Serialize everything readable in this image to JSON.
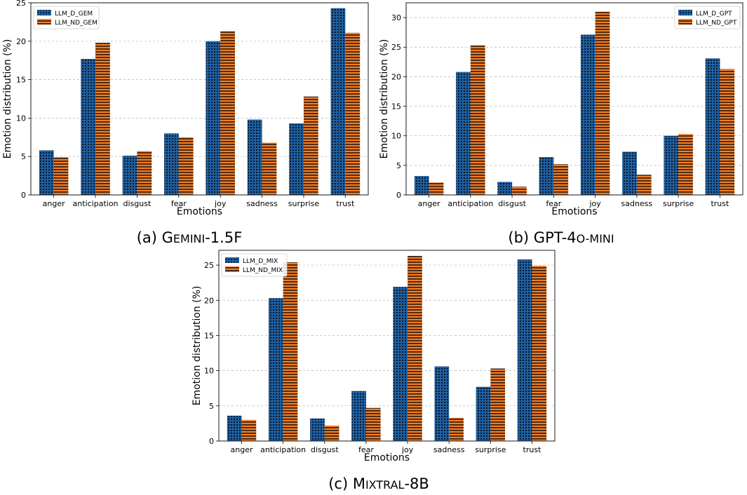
{
  "colors": {
    "d": "#1f5fa0",
    "nd": "#f07f2a",
    "grid": "#b0b0b0",
    "pattern": "#000000"
  },
  "chart_data": [
    {
      "type": "bar",
      "caption_prefix": "(a) ",
      "caption_parts": [
        [
          "G",
          "big"
        ],
        [
          "EMINI",
          "sc"
        ],
        [
          "-1.5F",
          "big"
        ]
      ],
      "categories": [
        "anger",
        "anticipation",
        "disgust",
        "fear",
        "joy",
        "sadness",
        "surprise",
        "trust"
      ],
      "series": [
        {
          "name": "LLM_D_GEM",
          "values": [
            5.8,
            17.7,
            5.1,
            8.0,
            20.0,
            9.8,
            9.3,
            24.3
          ]
        },
        {
          "name": "LLM_ND_GEM",
          "values": [
            4.9,
            19.8,
            5.7,
            7.5,
            21.3,
            6.8,
            12.8,
            21.1
          ]
        }
      ],
      "xlabel": "Emotions",
      "ylabel": "Emotion distribution (%)",
      "ylim": [
        0,
        25
      ],
      "yticks": [
        0,
        5,
        10,
        15,
        20,
        25
      ],
      "grid": "horizontal dashed",
      "legend": "top-left"
    },
    {
      "type": "bar",
      "caption_prefix": "(b) ",
      "caption_parts": [
        [
          "GPT-4",
          "big"
        ],
        [
          "O-MINI",
          "sc"
        ]
      ],
      "categories": [
        "anger",
        "anticipation",
        "disgust",
        "fear",
        "joy",
        "sadness",
        "surprise",
        "trust"
      ],
      "series": [
        {
          "name": "LLM_D_GPT",
          "values": [
            3.2,
            20.8,
            2.2,
            6.4,
            27.1,
            7.3,
            10.0,
            23.1
          ]
        },
        {
          "name": "LLM_ND_GPT",
          "values": [
            2.1,
            25.3,
            1.4,
            5.2,
            31.0,
            3.4,
            10.3,
            21.3
          ]
        }
      ],
      "xlabel": "Emotions",
      "ylabel": "Emotion distribution (%)",
      "ylim": [
        0,
        32.5
      ],
      "yticks": [
        0,
        5,
        10,
        15,
        20,
        25,
        30
      ],
      "grid": "horizontal dashed",
      "legend": "top-right"
    },
    {
      "type": "bar",
      "caption_prefix": "(c) ",
      "caption_parts": [
        [
          "M",
          "big"
        ],
        [
          "IXTRAL",
          "sc"
        ],
        [
          "-8B",
          "big"
        ]
      ],
      "categories": [
        "anger",
        "anticipation",
        "disgust",
        "fear",
        "joy",
        "sadness",
        "surprise",
        "trust"
      ],
      "series": [
        {
          "name": "LLM_D_MIX",
          "values": [
            3.6,
            20.3,
            3.2,
            7.1,
            21.9,
            10.6,
            7.7,
            25.8
          ]
        },
        {
          "name": "LLM_ND_MIX",
          "values": [
            3.0,
            25.4,
            2.2,
            4.7,
            26.3,
            3.3,
            10.3,
            24.9
          ]
        }
      ],
      "xlabel": "Emotions",
      "ylabel": "Emotion distribution (%)",
      "ylim": [
        0,
        27.1
      ],
      "yticks": [
        0,
        5,
        10,
        15,
        20,
        25
      ],
      "grid": "horizontal dashed",
      "legend": "top-left"
    }
  ]
}
